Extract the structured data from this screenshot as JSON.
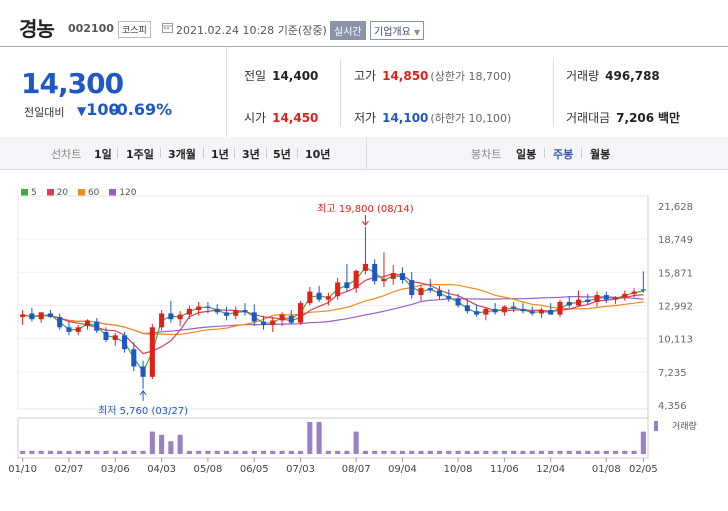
{
  "stock": {
    "name": "경농",
    "code": "002100",
    "market": "코스피",
    "datetime": "2021.02.24 10:28",
    "basis": "기준(장중)",
    "realtime_label": "실시간",
    "info_label": "기업개요"
  },
  "price": {
    "current": "14,300",
    "prev_label": "전일대비",
    "change": "100",
    "change_pct": "-0.69%"
  },
  "stats": {
    "prev_close_label": "전일",
    "prev_close": "14,400",
    "high_label": "고가",
    "high": "14,850",
    "upper_limit": "(상한가 18,700)",
    "volume_label": "거래량",
    "volume": "496,788",
    "open_label": "시가",
    "open": "14,450",
    "low_label": "저가",
    "low": "14,100",
    "lower_limit": "(하한가 10,100)",
    "amount_label": "거래대금",
    "amount": "7,206",
    "amount_unit": "백만"
  },
  "period": {
    "line_label": "선차트",
    "line_items": [
      "1일",
      "1주일",
      "3개월",
      "1년",
      "3년",
      "5년",
      "10년"
    ],
    "candle_label": "봉차트",
    "candle_items": [
      "일봉",
      "주봉",
      "월봉"
    ],
    "active_candle": "주봉"
  },
  "colors": {
    "up": "#e0211b",
    "down": "#1f58c4",
    "ma5": "#3cae3c",
    "ma20": "#e23b5a",
    "ma60": "#f08c1e",
    "ma120": "#9a5ec8",
    "volume": "#9b7fc7"
  },
  "chart_data": {
    "type": "candlestick",
    "legend": [
      "5",
      "20",
      "60",
      "120"
    ],
    "y_ticks": [
      "21,628",
      "18,749",
      "15,871",
      "12,992",
      "10,113",
      "7,235",
      "4,356"
    ],
    "ylim": [
      4356,
      21628
    ],
    "x_ticks": [
      "01/10",
      "02/07",
      "03/06",
      "04/03",
      "05/08",
      "06/05",
      "07/03",
      "08/07",
      "09/04",
      "10/08",
      "11/06",
      "12/04",
      "01/08",
      "02/05"
    ],
    "high_annotation": "최고 19,800 (08/14)",
    "low_annotation": "최저 5,760 (03/27)",
    "volume_label": "거래량",
    "candles": [
      [
        12000,
        12600,
        11300,
        12200
      ],
      [
        12300,
        12800,
        11600,
        11800
      ],
      [
        11800,
        12400,
        11500,
        12400
      ],
      [
        12300,
        12600,
        11900,
        12000
      ],
      [
        12000,
        12300,
        10900,
        11100
      ],
      [
        11100,
        11600,
        10400,
        10700
      ],
      [
        10700,
        11300,
        10400,
        11100
      ],
      [
        11200,
        11800,
        10900,
        11700
      ],
      [
        11600,
        11900,
        10600,
        10800
      ],
      [
        10700,
        11100,
        9800,
        10000
      ],
      [
        10000,
        10600,
        9500,
        10400
      ],
      [
        10400,
        10700,
        8900,
        9200
      ],
      [
        9200,
        9800,
        7300,
        7700
      ],
      [
        7700,
        8200,
        5760,
        6800
      ],
      [
        6800,
        11400,
        6600,
        11100
      ],
      [
        11100,
        12600,
        10800,
        12300
      ],
      [
        12300,
        13400,
        11500,
        11800
      ],
      [
        11800,
        12500,
        11200,
        12200
      ],
      [
        12200,
        13000,
        11800,
        12700
      ],
      [
        12600,
        13300,
        12100,
        12900
      ],
      [
        12900,
        13300,
        12300,
        12800
      ],
      [
        12700,
        13100,
        12200,
        12400
      ],
      [
        12400,
        12900,
        11700,
        12100
      ],
      [
        12100,
        12900,
        11800,
        12600
      ],
      [
        12600,
        13200,
        12100,
        12400
      ],
      [
        12400,
        13100,
        11200,
        11600
      ],
      [
        11600,
        12100,
        10900,
        11300
      ],
      [
        11300,
        12000,
        10700,
        11700
      ],
      [
        11700,
        12400,
        11200,
        12200
      ],
      [
        12100,
        12600,
        11400,
        11500
      ],
      [
        11500,
        13400,
        11300,
        13200
      ],
      [
        13200,
        14600,
        13000,
        14200
      ],
      [
        14100,
        14700,
        13300,
        13500
      ],
      [
        13500,
        14100,
        13000,
        13800
      ],
      [
        13800,
        15400,
        13500,
        15000
      ],
      [
        15000,
        16600,
        14200,
        14500
      ],
      [
        14500,
        16100,
        14100,
        16000
      ],
      [
        16000,
        19800,
        15700,
        16600
      ],
      [
        16600,
        17000,
        14800,
        15100
      ],
      [
        15100,
        17600,
        14600,
        15300
      ],
      [
        15300,
        16500,
        14800,
        15800
      ],
      [
        15800,
        16300,
        14900,
        15200
      ],
      [
        15200,
        15900,
        13600,
        13900
      ],
      [
        13900,
        14800,
        13400,
        14500
      ],
      [
        14500,
        15300,
        14100,
        14300
      ],
      [
        14300,
        14700,
        13500,
        13800
      ],
      [
        13800,
        14400,
        13300,
        13600
      ],
      [
        13600,
        14000,
        12800,
        13000
      ],
      [
        13000,
        13500,
        12300,
        12500
      ],
      [
        12500,
        13100,
        12000,
        12200
      ],
      [
        12200,
        12800,
        11700,
        12700
      ],
      [
        12700,
        13200,
        12200,
        12400
      ],
      [
        12400,
        13000,
        12100,
        12900
      ],
      [
        12900,
        13300,
        12400,
        12700
      ],
      [
        12700,
        13200,
        12300,
        12500
      ],
      [
        12500,
        12900,
        12100,
        12300
      ],
      [
        12300,
        12800,
        11900,
        12600
      ],
      [
        12600,
        13200,
        12300,
        12200
      ],
      [
        12200,
        13500,
        12000,
        13300
      ],
      [
        13300,
        13800,
        12800,
        13000
      ],
      [
        13000,
        14300,
        12900,
        13500
      ],
      [
        13500,
        14000,
        13100,
        13300
      ],
      [
        13300,
        14200,
        12900,
        13900
      ],
      [
        13900,
        14200,
        13200,
        13500
      ],
      [
        13500,
        13800,
        13100,
        13700
      ],
      [
        13700,
        14300,
        13400,
        14000
      ],
      [
        14000,
        14500,
        13700,
        14200
      ],
      [
        14400,
        15950,
        14100,
        14300
      ]
    ],
    "volumes": [
      1,
      1,
      1,
      1,
      1,
      1,
      1,
      1,
      1,
      1,
      1,
      1,
      1,
      1,
      7,
      6,
      4,
      6,
      1,
      1,
      1,
      1,
      1,
      1,
      1,
      1,
      1,
      1,
      1,
      1,
      1,
      10,
      10,
      1,
      1,
      1,
      7,
      1,
      1,
      1,
      1,
      1,
      1,
      1,
      1,
      1,
      1,
      1,
      1,
      1,
      1,
      1,
      1,
      1,
      1,
      1,
      1,
      1,
      1,
      1,
      1,
      1,
      1,
      1,
      1,
      1,
      1,
      7
    ]
  }
}
